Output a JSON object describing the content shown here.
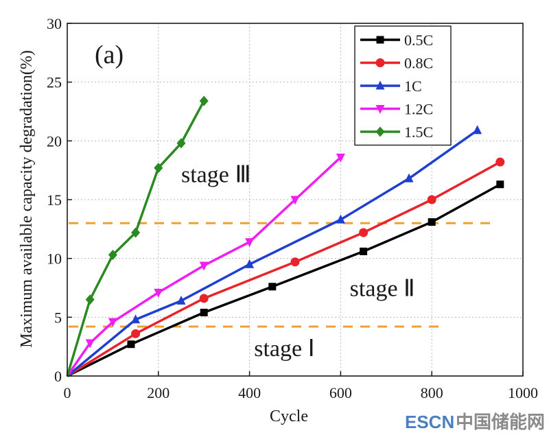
{
  "chart_data": {
    "type": "line",
    "panel_label": "(a)",
    "xlabel": "Cycle",
    "ylabel": "Maximum available capacity degradation(%)",
    "xlim": [
      0,
      1000
    ],
    "ylim": [
      0,
      30
    ],
    "xticks": [
      0,
      200,
      400,
      600,
      800,
      1000
    ],
    "yticks": [
      0,
      5,
      10,
      15,
      20,
      25,
      30
    ],
    "grid": true,
    "legend_position": "top-right",
    "series": [
      {
        "name": "0.5C",
        "color": "#000000",
        "marker": "square",
        "x": [
          0,
          140,
          300,
          450,
          650,
          800,
          950
        ],
        "y": [
          0,
          2.7,
          5.4,
          7.6,
          10.6,
          13.1,
          16.3
        ]
      },
      {
        "name": "0.8C",
        "color": "#e8232a",
        "marker": "circle",
        "x": [
          0,
          150,
          300,
          500,
          650,
          800,
          950
        ],
        "y": [
          0,
          3.6,
          6.6,
          9.7,
          12.2,
          15.0,
          18.2
        ]
      },
      {
        "name": "1C",
        "color": "#1f3fd1",
        "marker": "triangle-up",
        "x": [
          0,
          150,
          250,
          400,
          600,
          750,
          900
        ],
        "y": [
          0,
          4.8,
          6.4,
          9.5,
          13.3,
          16.8,
          20.9
        ]
      },
      {
        "name": "1.2C",
        "color": "#f01ef0",
        "marker": "triangle-down",
        "x": [
          0,
          50,
          100,
          200,
          300,
          400,
          500,
          600
        ],
        "y": [
          0,
          2.8,
          4.6,
          7.1,
          9.4,
          11.4,
          15.0,
          18.6
        ]
      },
      {
        "name": "1.5C",
        "color": "#2a8a22",
        "marker": "diamond",
        "x": [
          0,
          50,
          100,
          150,
          200,
          250,
          300
        ],
        "y": [
          0,
          6.5,
          10.3,
          12.2,
          17.7,
          19.8,
          23.4
        ]
      }
    ],
    "threshold_lines": [
      {
        "y": 13,
        "color": "#f0a030",
        "style": "dashed"
      },
      {
        "y": 4.2,
        "color": "#f0a030",
        "style": "dashed"
      }
    ],
    "annotations": [
      {
        "text": "stage Ⅲ",
        "x": 250,
        "y": 16.5
      },
      {
        "text": "stage Ⅱ",
        "x": 620,
        "y": 6.8
      },
      {
        "text": "stage Ⅰ",
        "x": 410,
        "y": 1.7
      }
    ]
  },
  "watermark": {
    "text_latin": "ESCN",
    "text_cjk": "中国储能网"
  }
}
